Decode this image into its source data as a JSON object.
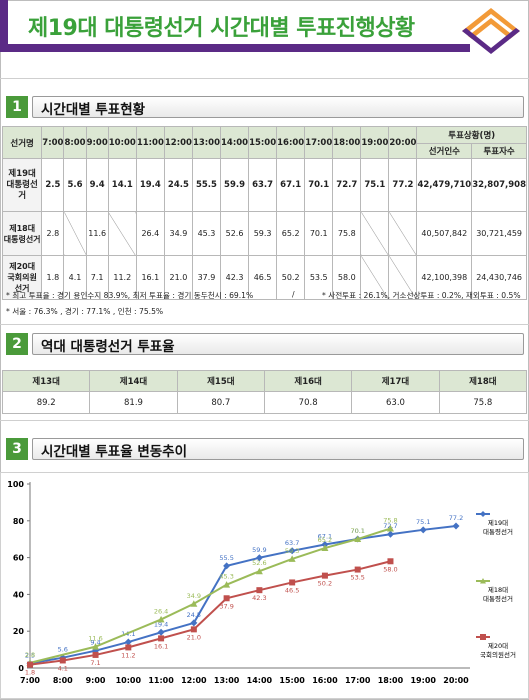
{
  "header": {
    "title": "제19대 대통령선거 시간대별 투표진행상황"
  },
  "section1": {
    "number": "1",
    "title": "시간대별 투표현황",
    "table": {
      "col_label": "선거명",
      "times": [
        "7:00",
        "8:00",
        "9:00",
        "10:00",
        "11:00",
        "12:00",
        "13:00",
        "14:00",
        "15:00",
        "16:00",
        "17:00",
        "18:00",
        "19:00",
        "20:00"
      ],
      "status_header": "투표상황(명)",
      "status_cols": [
        "선거인수",
        "투표자수"
      ],
      "rows": [
        {
          "name_line1": "제19대",
          "name_line2": "대통령선거",
          "values": [
            "2.5",
            "5.6",
            "9.4",
            "14.1",
            "19.4",
            "24.5",
            "55.5",
            "59.9",
            "63.7",
            "67.1",
            "70.1",
            "72.7",
            "75.1",
            "77.2"
          ],
          "voters": "42,479,710",
          "turnout": "32,807,908"
        },
        {
          "name_line1": "제18대",
          "name_line2": "대통령선거",
          "values": [
            "2.8",
            "",
            "11.6",
            "",
            "26.4",
            "34.9",
            "45.3",
            "52.6",
            "59.3",
            "65.2",
            "70.1",
            "75.8",
            "",
            ""
          ],
          "voters": "40,507,842",
          "turnout": "30,721,459"
        },
        {
          "name_line1": "제20대",
          "name_line2": "국회의원",
          "name_line3": "선거",
          "values": [
            "1.8",
            "4.1",
            "7.1",
            "11.2",
            "16.1",
            "21.0",
            "37.9",
            "42.3",
            "46.5",
            "50.2",
            "53.5",
            "58.0",
            "",
            ""
          ],
          "voters": "42,100,398",
          "turnout": "24,430,746"
        }
      ]
    },
    "note1": "* 최고 투표율 : 경기 용인수지 83.9%, 최저 투표율 : 경기 동두천시 : 69.1%",
    "note_sep": "/",
    "note2": "* 사전투표 : 26.1%, 거소선상투표 : 0.2%, 재외투표 : 0.5%",
    "note3": "* 서울 : 76.3% , 경기 : 77.1% , 인천 : 75.5%"
  },
  "section2": {
    "number": "2",
    "title": "역대 대통령선거 투표율",
    "headers": [
      "제13대",
      "제14대",
      "제15대",
      "제16대",
      "제17대",
      "제18대"
    ],
    "values": [
      "89.2",
      "81.9",
      "80.7",
      "70.8",
      "63.0",
      "75.8"
    ]
  },
  "section3": {
    "number": "3",
    "title": "시간대별 투표율 변동추이"
  },
  "chart_data": {
    "type": "line",
    "x": [
      "7:00",
      "8:00",
      "9:00",
      "10:00",
      "11:00",
      "12:00",
      "13:00",
      "14:00",
      "15:00",
      "16:00",
      "17:00",
      "18:00",
      "19:00",
      "20:00"
    ],
    "ylim": [
      0,
      100
    ],
    "yticks": [
      "0",
      "20",
      "40",
      "60",
      "80",
      "100"
    ],
    "grid": false,
    "legend": "right",
    "series": [
      {
        "name_line1": "제19대",
        "name_line2": "대통령선거",
        "color": "#4472c4",
        "values": [
          2.5,
          5.6,
          9.4,
          14.1,
          19.4,
          24.5,
          55.5,
          59.9,
          63.7,
          67.1,
          70.1,
          72.7,
          75.1,
          77.2
        ],
        "labels": [
          "2.5",
          "5.6",
          "9.4",
          "14.1",
          "19.4",
          "24.5",
          "55.5",
          "59.9",
          "63.7",
          "67.1",
          "70.1",
          "72.7",
          "75.1",
          "77.2"
        ]
      },
      {
        "name_line1": "제18대",
        "name_line2": "대통령선거",
        "color": "#9bbb59",
        "values": [
          2.8,
          null,
          11.6,
          null,
          26.4,
          34.9,
          45.3,
          52.6,
          59.3,
          65.2,
          70.1,
          75.8,
          null,
          null
        ],
        "labels": [
          "2.8",
          "",
          "11.6",
          "",
          "26.4",
          "34.9",
          "45.3",
          "52.6",
          "59.3",
          "65.2",
          "70.1",
          "75.8",
          "",
          ""
        ]
      },
      {
        "name_line1": "제20대",
        "name_line2": "국회의원선거",
        "color": "#c0504d",
        "values": [
          1.8,
          4.1,
          7.1,
          11.2,
          16.1,
          21.0,
          37.9,
          42.3,
          46.5,
          50.2,
          53.5,
          58.0,
          null,
          null
        ],
        "labels": [
          "1.8",
          "4.1",
          "7.1",
          "11.2",
          "16.1",
          "21.0",
          "37.9",
          "42.3",
          "46.5",
          "50.2",
          "53.5",
          "58.0",
          "",
          ""
        ]
      }
    ]
  }
}
